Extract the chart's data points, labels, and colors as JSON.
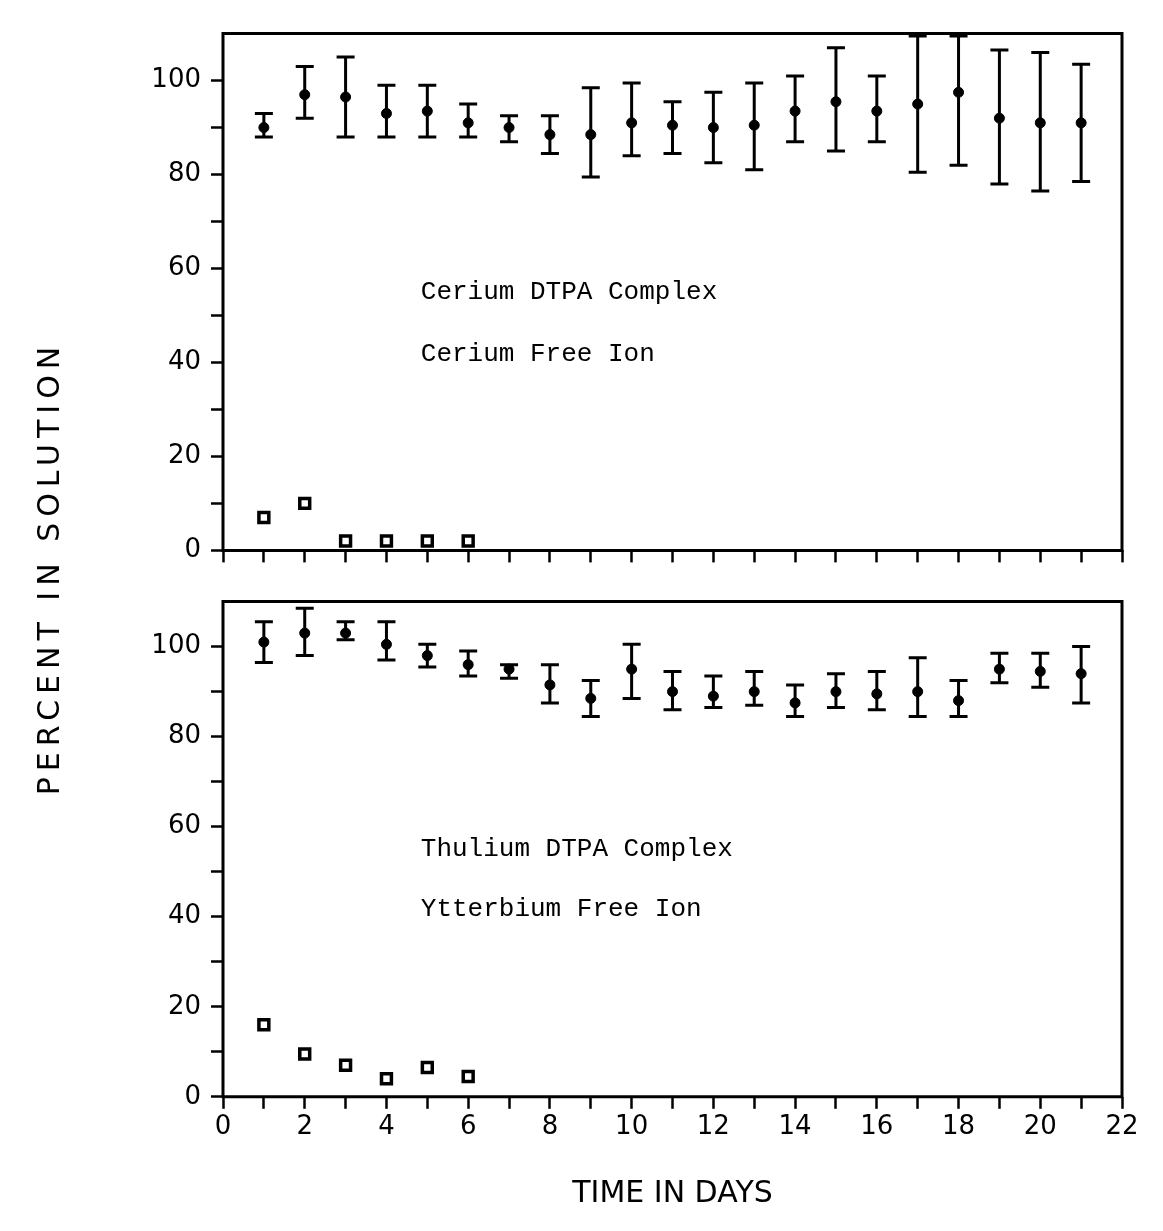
{
  "chart_data": [
    {
      "type": "scatter",
      "ylabel": "PERCENT IN SOLUTION",
      "annotations": [
        "Cerium DTPA Complex",
        "Cerium Free Ion"
      ],
      "xlim": [
        0,
        22
      ],
      "ylim": [
        0,
        110
      ],
      "xticks": [
        0,
        {
          "value": 1,
          "label": null
        },
        2,
        {
          "value": 3,
          "label": null
        },
        4,
        {
          "value": 5,
          "label": null
        },
        6,
        {
          "value": 7,
          "label": null
        },
        8,
        {
          "value": 9,
          "label": null
        },
        10,
        {
          "value": 11,
          "label": null
        },
        12,
        {
          "value": 13,
          "label": null
        },
        14,
        {
          "value": 15,
          "label": null
        },
        16,
        {
          "value": 17,
          "label": null
        },
        18,
        {
          "value": 19,
          "label": null
        },
        20,
        {
          "value": 21,
          "label": null
        },
        22
      ],
      "yticks": [
        0,
        {
          "value": 10,
          "label": null
        },
        20,
        {
          "value": 30,
          "label": null
        },
        40,
        {
          "value": 50,
          "label": null
        },
        60,
        {
          "value": 70,
          "label": null
        },
        80,
        {
          "value": 90,
          "label": null
        },
        100
      ],
      "tick_labels": "y",
      "grid": false,
      "legend": false,
      "series": [
        {
          "color": "#000000",
          "marker": "circle",
          "x": [
            1,
            2,
            3,
            4,
            5,
            6,
            7,
            8,
            9,
            10,
            11,
            12,
            13,
            14,
            15,
            16,
            17,
            18,
            19,
            20,
            21
          ],
          "values": [
            90,
            97,
            96.5,
            93,
            93.5,
            91,
            90,
            88.5,
            88.5,
            91,
            90.5,
            90,
            90.5,
            93.5,
            95.5,
            93.5,
            95,
            97.5,
            92,
            91,
            91
          ],
          "errors": [
            [
              88,
              93
            ],
            [
              92,
              103
            ],
            [
              88,
              105
            ],
            [
              88,
              99
            ],
            [
              88,
              99
            ],
            [
              88,
              95
            ],
            [
              87,
              92.5
            ],
            [
              84.5,
              92.5
            ],
            [
              79.5,
              98.5
            ],
            [
              84,
              99.5
            ],
            [
              84.5,
              95.5
            ],
            [
              82.5,
              97.5
            ],
            [
              81,
              99.5
            ],
            [
              87,
              101
            ],
            [
              85,
              107
            ],
            [
              87,
              101
            ],
            [
              80.5,
              109.5
            ],
            [
              82,
              109.5
            ],
            [
              78,
              106.5
            ],
            [
              76.5,
              106
            ],
            [
              78.5,
              103.5
            ]
          ]
        },
        {
          "color": "#000000",
          "marker": "square",
          "x": [
            1,
            2,
            3,
            4,
            5,
            6
          ],
          "values": [
            7,
            10,
            2,
            2,
            2,
            2
          ]
        }
      ]
    },
    {
      "type": "scatter",
      "xlabel": "TIME IN DAYS",
      "annotations": [
        "Thulium DTPA Complex",
        "Ytterbium Free Ion"
      ],
      "xlim": [
        0,
        22
      ],
      "ylim": [
        0,
        110
      ],
      "xticks": [
        0,
        {
          "value": 1,
          "label": null
        },
        2,
        {
          "value": 3,
          "label": null
        },
        4,
        {
          "value": 5,
          "label": null
        },
        6,
        {
          "value": 7,
          "label": null
        },
        8,
        {
          "value": 9,
          "label": null
        },
        10,
        {
          "value": 11,
          "label": null
        },
        12,
        {
          "value": 13,
          "label": null
        },
        14,
        {
          "value": 15,
          "label": null
        },
        16,
        {
          "value": 17,
          "label": null
        },
        18,
        {
          "value": 19,
          "label": null
        },
        20,
        {
          "value": 21,
          "label": null
        },
        22
      ],
      "yticks": [
        0,
        {
          "value": 10,
          "label": null
        },
        20,
        {
          "value": 30,
          "label": null
        },
        40,
        {
          "value": 50,
          "label": null
        },
        60,
        {
          "value": 70,
          "label": null
        },
        80,
        {
          "value": 90,
          "label": null
        },
        100
      ],
      "grid": false,
      "legend": false,
      "series": [
        {
          "color": "#000000",
          "marker": "circle",
          "x": [
            1,
            2,
            3,
            4,
            5,
            6,
            7,
            8,
            9,
            10,
            11,
            12,
            13,
            14,
            15,
            16,
            17,
            18,
            19,
            20,
            21
          ],
          "values": [
            101,
            103,
            103,
            100.5,
            98,
            96,
            95,
            91.5,
            88.5,
            95,
            90,
            89,
            90,
            87.5,
            90,
            89.5,
            90,
            88,
            95,
            94.5,
            94
          ],
          "errors": [
            [
              96.5,
              105.5
            ],
            [
              98,
              108.5
            ],
            [
              101.5,
              105.5
            ],
            [
              97,
              105.5
            ],
            [
              95.5,
              100.5
            ],
            [
              93.5,
              99
            ],
            [
              93,
              96
            ],
            [
              87.5,
              96
            ],
            [
              84.5,
              92.5
            ],
            [
              88.5,
              100.5
            ],
            [
              86,
              94.5
            ],
            [
              86.5,
              93.5
            ],
            [
              87,
              94.5
            ],
            [
              84.5,
              91.5
            ],
            [
              86.5,
              94
            ],
            [
              86,
              94.5
            ],
            [
              84.5,
              97.5
            ],
            [
              84.5,
              92.5
            ],
            [
              92,
              98.5
            ],
            [
              91,
              98.5
            ],
            [
              87.5,
              100
            ]
          ]
        },
        {
          "color": "#000000",
          "marker": "square",
          "x": [
            1,
            2,
            3,
            4,
            5,
            6
          ],
          "values": [
            16,
            9.5,
            7,
            4,
            6.5,
            4.5
          ]
        }
      ]
    }
  ]
}
